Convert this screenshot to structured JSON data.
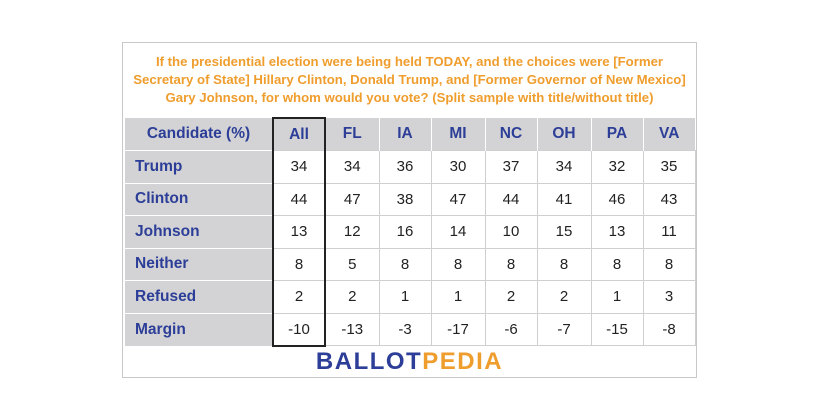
{
  "question": "If the presidential election were being held TODAY, and the choices were [Former Secretary of State] Hillary Clinton, Donald Trump, and [Former Governor of New Mexico] Gary Johnson, for whom would you vote? (Split sample with title/without title)",
  "table": {
    "header": [
      "Candidate (%)",
      "All",
      "FL",
      "IA",
      "MI",
      "NC",
      "OH",
      "PA",
      "VA"
    ],
    "rows": [
      {
        "label": "Trump",
        "values": [
          "34",
          "34",
          "36",
          "30",
          "37",
          "34",
          "32",
          "35"
        ]
      },
      {
        "label": "Clinton",
        "values": [
          "44",
          "47",
          "38",
          "47",
          "44",
          "41",
          "46",
          "43"
        ]
      },
      {
        "label": "Johnson",
        "values": [
          "13",
          "12",
          "16",
          "14",
          "10",
          "15",
          "13",
          "11"
        ]
      },
      {
        "label": "Neither",
        "values": [
          "8",
          "5",
          "8",
          "8",
          "8",
          "8",
          "8",
          "8"
        ]
      },
      {
        "label": "Refused",
        "values": [
          "2",
          "2",
          "1",
          "1",
          "2",
          "2",
          "1",
          "3"
        ]
      },
      {
        "label": "Margin",
        "values": [
          "-10",
          "-13",
          "-3",
          "-17",
          "-6",
          "-7",
          "-15",
          "-8"
        ]
      }
    ]
  },
  "logo": {
    "part1": "BALLOT",
    "part2": "PEDIA"
  },
  "colors": {
    "accent_orange": "#ef9d2d",
    "brand_blue": "#2c3e97",
    "header_gray": "#d3d3d5"
  }
}
